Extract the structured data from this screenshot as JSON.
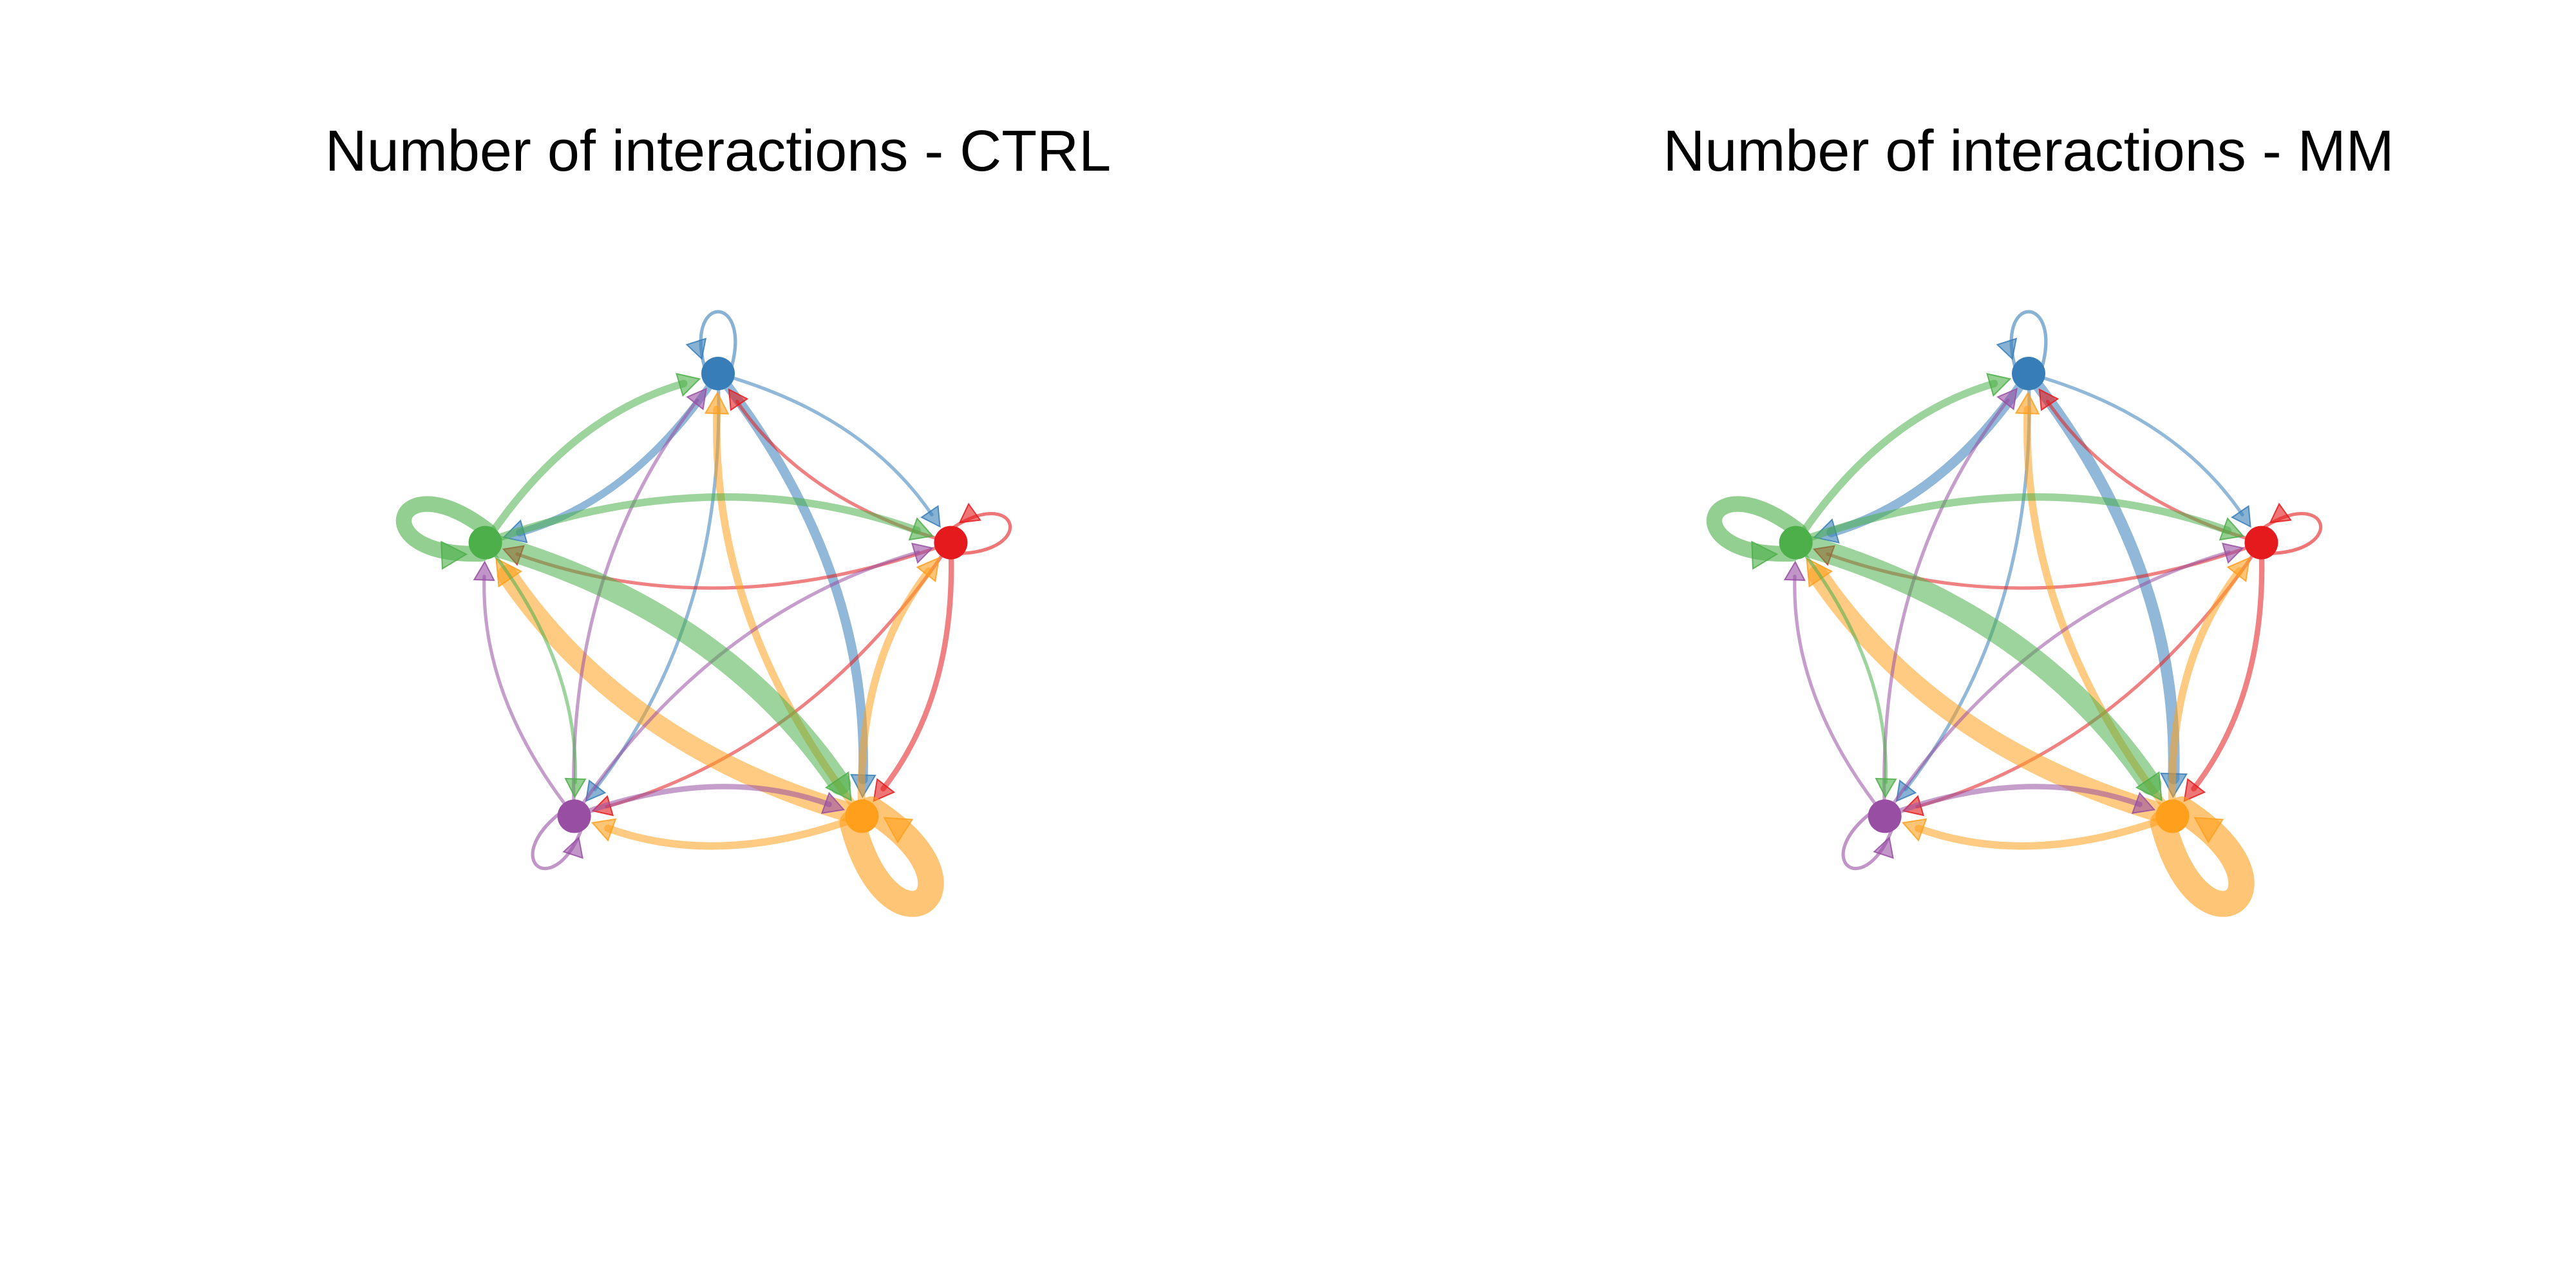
{
  "panels": [
    {
      "title": "Number of interactions - CTRL",
      "nodes": [
        {
          "id": "blue",
          "color": "#377EB8"
        },
        {
          "id": "red",
          "color": "#E41A1C"
        },
        {
          "id": "orange",
          "color": "#FF9F1C"
        },
        {
          "id": "purple",
          "color": "#984EA3"
        },
        {
          "id": "green",
          "color": "#4DAF4A"
        }
      ],
      "edges": [
        {
          "from": "blue",
          "to": "blue",
          "weight": 1
        },
        {
          "from": "blue",
          "to": "red",
          "weight": 1
        },
        {
          "from": "blue",
          "to": "orange",
          "weight": 4
        },
        {
          "from": "blue",
          "to": "purple",
          "weight": 1
        },
        {
          "from": "blue",
          "to": "green",
          "weight": 3
        },
        {
          "from": "red",
          "to": "red",
          "weight": 1
        },
        {
          "from": "red",
          "to": "blue",
          "weight": 1
        },
        {
          "from": "red",
          "to": "orange",
          "weight": 2
        },
        {
          "from": "red",
          "to": "purple",
          "weight": 1
        },
        {
          "from": "red",
          "to": "green",
          "weight": 1
        },
        {
          "from": "orange",
          "to": "orange",
          "weight": 12
        },
        {
          "from": "orange",
          "to": "blue",
          "weight": 3
        },
        {
          "from": "orange",
          "to": "red",
          "weight": 3
        },
        {
          "from": "orange",
          "to": "purple",
          "weight": 3
        },
        {
          "from": "orange",
          "to": "green",
          "weight": 9
        },
        {
          "from": "purple",
          "to": "purple",
          "weight": 1
        },
        {
          "from": "purple",
          "to": "blue",
          "weight": 1
        },
        {
          "from": "purple",
          "to": "red",
          "weight": 1
        },
        {
          "from": "purple",
          "to": "orange",
          "weight": 2
        },
        {
          "from": "purple",
          "to": "green",
          "weight": 1
        },
        {
          "from": "green",
          "to": "green",
          "weight": 7
        },
        {
          "from": "green",
          "to": "blue",
          "weight": 3
        },
        {
          "from": "green",
          "to": "red",
          "weight": 3
        },
        {
          "from": "green",
          "to": "orange",
          "weight": 10
        },
        {
          "from": "green",
          "to": "purple",
          "weight": 1
        }
      ]
    },
    {
      "title": "Number of interactions - MM",
      "nodes": [
        {
          "id": "blue",
          "color": "#377EB8"
        },
        {
          "id": "red",
          "color": "#E41A1C"
        },
        {
          "id": "orange",
          "color": "#FF9F1C"
        },
        {
          "id": "purple",
          "color": "#984EA3"
        },
        {
          "id": "green",
          "color": "#4DAF4A"
        }
      ],
      "edges": [
        {
          "from": "blue",
          "to": "blue",
          "weight": 1
        },
        {
          "from": "blue",
          "to": "red",
          "weight": 1
        },
        {
          "from": "blue",
          "to": "orange",
          "weight": 5
        },
        {
          "from": "blue",
          "to": "purple",
          "weight": 1
        },
        {
          "from": "blue",
          "to": "green",
          "weight": 4
        },
        {
          "from": "red",
          "to": "red",
          "weight": 1
        },
        {
          "from": "red",
          "to": "blue",
          "weight": 1
        },
        {
          "from": "red",
          "to": "orange",
          "weight": 2
        },
        {
          "from": "red",
          "to": "purple",
          "weight": 1
        },
        {
          "from": "red",
          "to": "green",
          "weight": 1
        },
        {
          "from": "orange",
          "to": "orange",
          "weight": 12
        },
        {
          "from": "orange",
          "to": "blue",
          "weight": 3
        },
        {
          "from": "orange",
          "to": "red",
          "weight": 3
        },
        {
          "from": "orange",
          "to": "purple",
          "weight": 3
        },
        {
          "from": "orange",
          "to": "green",
          "weight": 9
        },
        {
          "from": "purple",
          "to": "purple",
          "weight": 1
        },
        {
          "from": "purple",
          "to": "blue",
          "weight": 1
        },
        {
          "from": "purple",
          "to": "red",
          "weight": 1
        },
        {
          "from": "purple",
          "to": "orange",
          "weight": 2
        },
        {
          "from": "purple",
          "to": "green",
          "weight": 1
        },
        {
          "from": "green",
          "to": "green",
          "weight": 7
        },
        {
          "from": "green",
          "to": "blue",
          "weight": 3
        },
        {
          "from": "green",
          "to": "red",
          "weight": 3
        },
        {
          "from": "green",
          "to": "orange",
          "weight": 10
        },
        {
          "from": "green",
          "to": "purple",
          "weight": 1
        }
      ]
    }
  ]
}
